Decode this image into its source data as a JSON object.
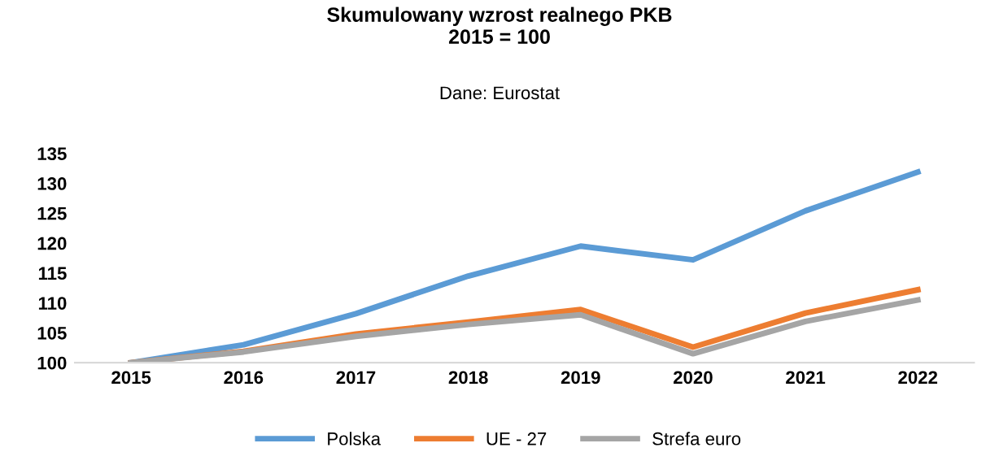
{
  "chart_data": {
    "type": "line",
    "title": "Skumulowany wzrost realnego PKB\n2015 = 100",
    "subtitle": "Dane: Eurostat",
    "categories": [
      "2015",
      "2016",
      "2017",
      "2018",
      "2019",
      "2020",
      "2021",
      "2022"
    ],
    "series": [
      {
        "name": "Polska",
        "color": "#5b9bd5",
        "values": [
          100,
          103.0,
          108.2,
          114.5,
          119.5,
          117.2,
          125.4,
          131.9
        ]
      },
      {
        "name": "UE - 27",
        "color": "#ed7d31",
        "values": [
          100,
          101.9,
          104.8,
          106.8,
          108.9,
          102.6,
          108.3,
          112.2
        ]
      },
      {
        "name": "Strefa euro",
        "color": "#a5a5a5",
        "values": [
          100,
          101.8,
          104.4,
          106.4,
          108.0,
          101.5,
          106.9,
          110.5
        ]
      }
    ],
    "ylim": [
      100,
      135
    ],
    "yticks": [
      100,
      105,
      110,
      115,
      120,
      125,
      130,
      135
    ],
    "grid": false,
    "legend": "bottom",
    "marker": "none",
    "line_style": "solid"
  }
}
